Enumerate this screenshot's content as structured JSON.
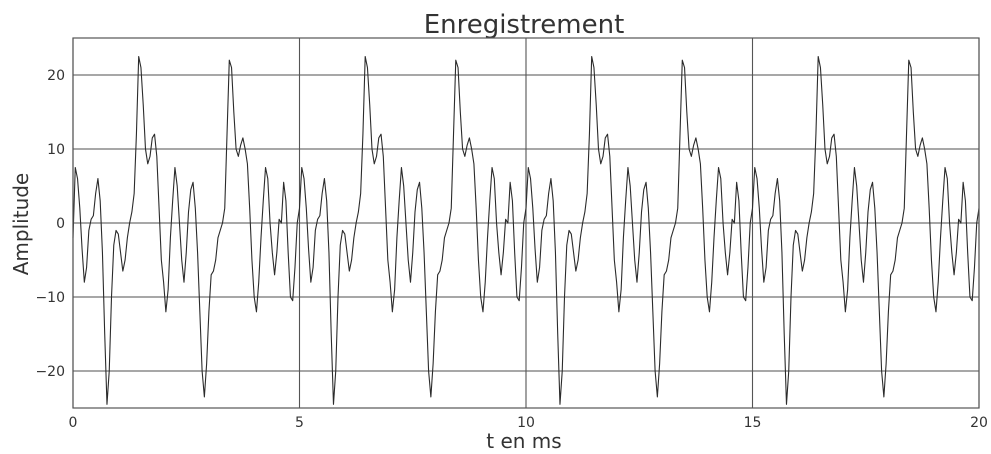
{
  "chart_data": {
    "type": "line",
    "title": "Enregistrement",
    "xlabel": "t en ms",
    "ylabel": "Amplitude",
    "xlim": [
      0,
      20
    ],
    "ylim": [
      -25,
      25
    ],
    "grid": "horizontal and vertical at ticks",
    "x_ticks": [
      0,
      5,
      10,
      15,
      20
    ],
    "x_tick_labels": [
      "0",
      "5",
      "10",
      "15",
      "20"
    ],
    "y_ticks": [
      -20,
      -10,
      0,
      10,
      20
    ],
    "y_tick_labels": [
      "−20",
      "−10",
      "0",
      "10",
      "20"
    ],
    "series": [
      {
        "x": [
          0.0,
          0.05,
          0.1,
          0.15,
          0.2,
          0.25,
          0.3,
          0.35,
          0.4,
          0.45,
          0.5,
          0.55,
          0.6,
          0.65,
          0.7,
          0.75,
          0.8,
          0.85,
          0.9,
          0.95,
          1.0,
          1.05,
          1.1,
          1.15,
          1.2,
          1.25,
          1.3,
          1.35,
          1.4,
          1.45,
          1.5,
          1.55,
          1.6,
          1.65,
          1.7,
          1.75,
          1.8,
          1.85,
          1.9,
          1.95,
          2.0,
          2.05,
          2.1,
          2.15,
          2.2,
          2.25,
          2.3,
          2.35,
          2.4,
          2.45,
          2.5,
          2.55,
          2.6,
          2.65,
          2.7,
          2.75,
          2.8,
          2.85,
          2.9,
          2.95,
          3.0,
          3.05,
          3.1,
          3.15,
          3.2,
          3.25,
          3.3,
          3.35,
          3.4,
          3.45,
          3.5,
          3.55,
          3.6,
          3.65,
          3.7,
          3.75,
          3.8,
          3.85,
          3.9,
          3.95,
          4.0,
          4.05,
          4.1,
          4.15,
          4.2,
          4.25,
          4.3,
          4.35,
          4.4,
          4.45,
          4.5,
          4.55,
          4.6,
          4.65,
          4.7,
          4.75,
          4.8,
          4.85,
          4.9,
          4.95,
          5.0,
          5.05,
          5.1,
          5.15,
          5.2,
          5.25,
          5.3,
          5.35,
          5.4,
          5.45,
          5.5,
          5.55,
          5.6,
          5.65,
          5.7,
          5.75,
          5.8,
          5.85,
          5.9,
          5.95,
          6.0,
          6.05,
          6.1,
          6.15,
          6.2,
          6.25,
          6.3,
          6.35,
          6.4,
          6.45,
          6.5,
          6.55,
          6.6,
          6.65,
          6.7,
          6.75,
          6.8,
          6.85,
          6.9,
          6.95,
          7.0,
          7.05,
          7.1,
          7.15,
          7.2,
          7.25,
          7.3,
          7.35,
          7.4,
          7.45,
          7.5,
          7.55,
          7.6,
          7.65,
          7.7,
          7.75,
          7.8,
          7.85,
          7.9,
          7.95,
          8.0,
          8.05,
          8.1,
          8.15,
          8.2,
          8.25,
          8.3,
          8.35,
          8.4,
          8.45,
          8.5,
          8.55,
          8.6,
          8.65,
          8.7,
          8.75,
          8.8,
          8.85,
          8.9,
          8.95,
          9.0,
          9.05,
          9.1,
          9.15,
          9.2,
          9.25,
          9.3,
          9.35,
          9.4,
          9.45,
          9.5,
          9.55,
          9.6,
          9.65,
          9.7,
          9.75,
          9.8,
          9.85,
          9.9,
          9.95,
          10.0,
          10.05,
          10.1,
          10.15,
          10.2,
          10.25,
          10.3,
          10.35,
          10.4,
          10.45,
          10.5,
          10.55,
          10.6,
          10.65,
          10.7,
          10.75,
          10.8,
          10.85,
          10.9,
          10.95,
          11.0,
          11.05,
          11.1,
          11.15,
          11.2,
          11.25,
          11.3,
          11.35,
          11.4,
          11.45,
          11.5,
          11.55,
          11.6,
          11.65,
          11.7,
          11.75,
          11.8,
          11.85,
          11.9,
          11.95,
          12.0,
          12.05,
          12.1,
          12.15,
          12.2,
          12.25,
          12.3,
          12.35,
          12.4,
          12.45,
          12.5,
          12.55,
          12.6,
          12.65,
          12.7,
          12.75,
          12.8,
          12.85,
          12.9,
          12.95,
          13.0,
          13.05,
          13.1,
          13.15,
          13.2,
          13.25,
          13.3,
          13.35,
          13.4,
          13.45,
          13.5,
          13.55,
          13.6,
          13.65,
          13.7,
          13.75,
          13.8,
          13.85,
          13.9,
          13.95,
          14.0,
          14.05,
          14.1,
          14.15,
          14.2,
          14.25,
          14.3,
          14.35,
          14.4,
          14.45,
          14.5,
          14.55,
          14.6,
          14.65,
          14.7,
          14.75,
          14.8,
          14.85,
          14.9,
          14.95,
          15.0,
          15.05,
          15.1,
          15.15,
          15.2,
          15.25,
          15.3,
          15.35,
          15.4,
          15.45,
          15.5,
          15.55,
          15.6,
          15.65,
          15.7,
          15.75,
          15.8,
          15.85,
          15.9,
          15.95,
          16.0,
          16.05,
          16.1,
          16.15,
          16.2,
          16.25,
          16.3,
          16.35,
          16.4,
          16.45,
          16.5,
          16.55,
          16.6,
          16.65,
          16.7,
          16.75,
          16.8,
          16.85,
          16.9,
          16.95,
          17.0,
          17.05,
          17.1,
          17.15,
          17.2,
          17.25,
          17.3,
          17.35,
          17.4,
          17.45,
          17.5,
          17.55,
          17.6,
          17.65,
          17.7,
          17.75,
          17.8,
          17.85,
          17.9,
          17.95,
          18.0,
          18.05,
          18.1,
          18.15,
          18.2,
          18.25,
          18.3,
          18.35,
          18.4,
          18.45,
          18.5,
          18.55,
          18.6,
          18.65,
          18.7,
          18.75,
          18.8,
          18.85,
          18.9,
          18.95,
          19.0,
          19.05,
          19.1,
          19.15,
          19.2,
          19.25,
          19.3,
          19.35,
          19.4,
          19.45,
          19.5,
          19.55,
          19.6,
          19.65,
          19.7,
          19.75,
          19.8,
          19.85,
          19.9,
          19.95,
          20.0
        ],
        "y": [
          -2.0,
          7.5,
          6.0,
          2.0,
          -3.5,
          -8.0,
          -6.0,
          -1.0,
          0.5,
          1.0,
          4.0,
          6.0,
          3.0,
          -4.0,
          -15.0,
          -24.5,
          -20.0,
          -10.0,
          -3.0,
          -1.0,
          -1.5,
          -4.0,
          -6.5,
          -5.0,
          -2.0,
          0.0,
          1.5,
          4.0,
          12.0,
          22.5,
          21.0,
          16.0,
          10.0,
          8.0,
          9.0,
          11.5,
          12.0,
          9.0,
          2.0,
          -5.0,
          -8.0,
          -12.0,
          -9.0,
          -2.0,
          3.0,
          7.5,
          5.0,
          0.0,
          -5.0,
          -8.0,
          -4.0,
          1.5,
          4.5,
          5.5,
          2.0,
          -4.0,
          -12.0,
          -20.0,
          -23.5,
          -19.0,
          -12.0,
          -7.0,
          -6.5,
          -5.0,
          -2.0,
          -1.0,
          0.0,
          2.0,
          12.0,
          22.0,
          21.0,
          15.0,
          10.0,
          9.0,
          10.5,
          11.5,
          10.0,
          8.0,
          2.0,
          -5.0,
          -10.0,
          -12.0,
          -8.0,
          -2.0,
          3.0,
          7.5,
          6.0,
          0.0,
          -4.0,
          -7.0,
          -4.0,
          0.5,
          0.0,
          5.5,
          3.0,
          -4.0,
          -10.0,
          -10.5,
          -6.0,
          0.0,
          2.0,
          7.5,
          6.0,
          2.0,
          -3.5,
          -8.0,
          -6.0,
          -1.0,
          0.5,
          1.0,
          4.0,
          6.0,
          3.0,
          -4.0,
          -15.0,
          -24.5,
          -20.0,
          -10.0,
          -3.0,
          -1.0,
          -1.5,
          -4.0,
          -6.5,
          -5.0,
          -2.0,
          0.0,
          1.5,
          4.0,
          12.0,
          22.5,
          21.0,
          16.0,
          10.0,
          8.0,
          9.0,
          11.5,
          12.0,
          9.0,
          2.0,
          -5.0,
          -8.0,
          -12.0,
          -9.0,
          -2.0,
          3.0,
          7.5,
          5.0,
          0.0,
          -5.0,
          -8.0,
          -4.0,
          1.5,
          4.5,
          5.5,
          2.0,
          -4.0,
          -12.0,
          -20.0,
          -23.5,
          -19.0,
          -12.0,
          -7.0,
          -6.5,
          -5.0,
          -2.0,
          -1.0,
          0.0,
          2.0,
          12.0,
          22.0,
          21.0,
          15.0,
          10.0,
          9.0,
          10.5,
          11.5,
          10.0,
          8.0,
          2.0,
          -5.0,
          -10.0,
          -12.0,
          -8.0,
          -2.0,
          3.0,
          7.5,
          6.0,
          0.0,
          -4.0,
          -7.0,
          -4.0,
          0.5,
          0.0,
          5.5,
          3.0,
          -4.0,
          -10.0,
          -10.5,
          -6.0,
          0.0,
          2.0,
          7.5,
          6.0,
          2.0,
          -3.5,
          -8.0,
          -6.0,
          -1.0,
          0.5,
          1.0,
          4.0,
          6.0,
          3.0,
          -4.0,
          -15.0,
          -24.5,
          -20.0,
          -10.0,
          -3.0,
          -1.0,
          -1.5,
          -4.0,
          -6.5,
          -5.0,
          -2.0,
          0.0,
          1.5,
          4.0,
          12.0,
          22.5,
          21.0,
          16.0,
          10.0,
          8.0,
          9.0,
          11.5,
          12.0,
          9.0,
          2.0,
          -5.0,
          -8.0,
          -12.0,
          -9.0,
          -2.0,
          3.0,
          7.5,
          5.0,
          0.0,
          -5.0,
          -8.0,
          -4.0,
          1.5,
          4.5,
          5.5,
          2.0,
          -4.0,
          -12.0,
          -20.0,
          -23.5,
          -19.0,
          -12.0,
          -7.0,
          -6.5,
          -5.0,
          -2.0,
          -1.0,
          0.0,
          2.0,
          12.0,
          22.0,
          21.0,
          15.0,
          10.0,
          9.0,
          10.5,
          11.5,
          10.0,
          8.0,
          2.0,
          -5.0,
          -10.0,
          -12.0,
          -8.0,
          -2.0,
          3.0,
          7.5,
          6.0,
          0.0,
          -4.0,
          -7.0,
          -4.0,
          0.5,
          0.0,
          5.5,
          3.0,
          -4.0,
          -10.0,
          -10.5,
          -6.0,
          0.0,
          2.0,
          7.5,
          6.0,
          2.0,
          -3.5,
          -8.0,
          -6.0,
          -1.0,
          0.5,
          1.0,
          4.0,
          6.0,
          3.0,
          -4.0,
          -15.0,
          -24.5,
          -20.0,
          -10.0,
          -3.0,
          -1.0,
          -1.5,
          -4.0,
          -6.5,
          -5.0,
          -2.0,
          0.0,
          1.5,
          4.0,
          12.0,
          22.5,
          21.0,
          16.0,
          10.0,
          8.0,
          9.0,
          11.5,
          12.0,
          9.0,
          2.0,
          -5.0,
          -8.0,
          -12.0,
          -9.0,
          -2.0,
          3.0,
          7.5,
          5.0,
          0.0,
          -5.0,
          -8.0,
          -4.0,
          1.5,
          4.5,
          5.5,
          2.0,
          -4.0,
          -12.0,
          -20.0,
          -23.5,
          -19.0,
          -12.0,
          -7.0,
          -6.5,
          -5.0,
          -2.0,
          -1.0,
          0.0,
          2.0,
          12.0,
          22.0,
          21.0,
          15.0,
          10.0,
          9.0,
          10.5,
          11.5,
          10.0,
          8.0,
          2.0,
          -5.0,
          -10.0,
          -12.0,
          -8.0,
          -2.0,
          3.0,
          7.5,
          6.0,
          0.0,
          -4.0,
          -7.0,
          -4.0,
          0.5,
          0.0,
          5.5,
          3.0,
          -4.0,
          -10.0,
          -10.5,
          -6.0,
          0.0,
          2.0
        ]
      }
    ]
  }
}
